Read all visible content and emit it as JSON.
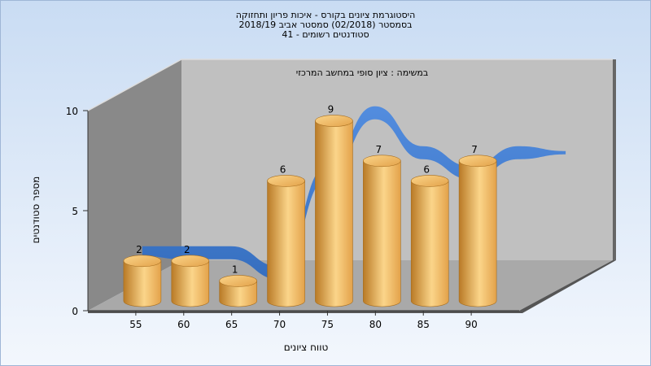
{
  "chart_data": {
    "type": "bar",
    "title": [
      "היסטוגרמת ציונים בקורס - איכות פריון ותחזוקה",
      "בסמסטר  (02/2018)  סמסטר אביב 2018/19",
      "סטודנטים רשומים - 41"
    ],
    "subtitle": "במשימה : ציון סופי במחשב המרכזי",
    "xlabel": "טווח ציונים",
    "ylabel": "מספר סטודנטים",
    "categories": [
      "55",
      "60",
      "65",
      "70",
      "75",
      "80",
      "85",
      "90"
    ],
    "values": [
      2,
      2,
      1,
      6,
      9,
      7,
      6,
      7
    ],
    "ylim": [
      0,
      10
    ],
    "yticks": [
      "0",
      "5",
      "10"
    ],
    "grid": false,
    "legend": "none",
    "trend_series": {
      "type": "area-ribbon"
    },
    "colors": {
      "background_top": "#c9dcf3",
      "background_bottom": "#f3f7fd",
      "back_wall": "#c0c0c0",
      "side_wall": "#898989",
      "floor": "#a9a9a9",
      "bar": "#e3a24a",
      "bar_highlight": "#fbd58a",
      "bar_dark": "#b97a26",
      "ribbon": "#2f6bc0",
      "ribbon_light": "#4d8ae0"
    }
  }
}
